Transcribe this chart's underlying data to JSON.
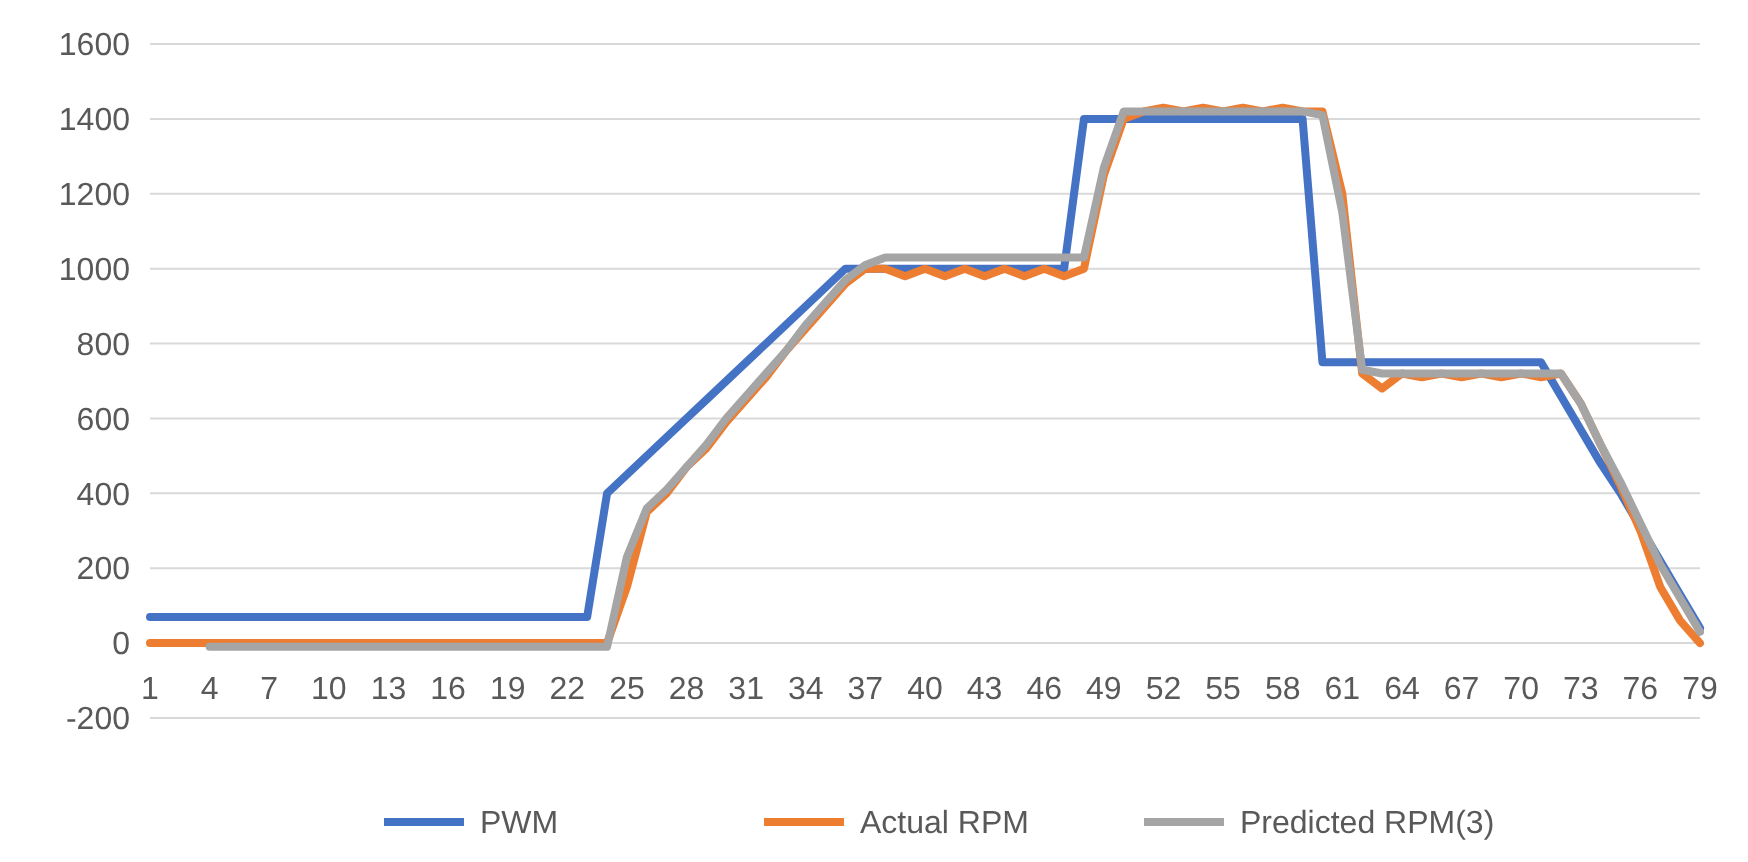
{
  "chart_data": {
    "type": "line",
    "categories": [
      "1",
      null,
      null,
      "4",
      null,
      null,
      "7",
      null,
      null,
      "10",
      null,
      null,
      "13",
      null,
      null,
      "16",
      null,
      null,
      "19",
      null,
      null,
      "22",
      null,
      null,
      "25",
      null,
      null,
      "28",
      null,
      null,
      "31",
      null,
      null,
      "34",
      null,
      null,
      "37",
      null,
      null,
      "40",
      null,
      null,
      "43",
      null,
      null,
      "46",
      null,
      null,
      "49",
      null,
      null,
      "52",
      null,
      null,
      "55",
      null,
      null,
      "58",
      null,
      null,
      "61",
      null,
      null,
      "64",
      null,
      null,
      "67",
      null,
      null,
      "70",
      null,
      null,
      "73",
      null,
      null,
      "76",
      null,
      null,
      "79"
    ],
    "ylim": [
      -200,
      1600
    ],
    "yticks": [
      -200,
      0,
      200,
      400,
      600,
      800,
      1000,
      1200,
      1400,
      1600
    ],
    "grid": "y",
    "legend": "bottom",
    "line_style": "solid",
    "marker": "none",
    "series": [
      {
        "name": "PWM",
        "color": "#4472c4",
        "values": [
          70,
          70,
          70,
          70,
          70,
          70,
          70,
          70,
          70,
          70,
          70,
          70,
          70,
          70,
          70,
          70,
          70,
          70,
          70,
          70,
          70,
          70,
          70,
          400,
          450,
          500,
          550,
          600,
          650,
          700,
          750,
          800,
          850,
          900,
          950,
          1000,
          1000,
          1000,
          1000,
          1000,
          1000,
          1000,
          1000,
          1000,
          1000,
          1000,
          1000,
          1400,
          1400,
          1400,
          1400,
          1400,
          1400,
          1400,
          1400,
          1400,
          1400,
          1400,
          1400,
          750,
          750,
          750,
          750,
          750,
          750,
          750,
          750,
          750,
          750,
          750,
          750,
          660,
          570,
          480,
          400,
          310,
          220,
          130,
          40
        ]
      },
      {
        "name": "Actual RPM",
        "color": "#ed7d31",
        "values": [
          0,
          0,
          0,
          0,
          0,
          0,
          0,
          0,
          0,
          0,
          0,
          0,
          0,
          0,
          0,
          0,
          0,
          0,
          0,
          0,
          0,
          0,
          0,
          0,
          150,
          350,
          400,
          470,
          520,
          590,
          650,
          710,
          780,
          840,
          900,
          960,
          1000,
          1000,
          980,
          1000,
          980,
          1000,
          980,
          1000,
          980,
          1000,
          980,
          1000,
          1250,
          1400,
          1420,
          1430,
          1420,
          1430,
          1420,
          1430,
          1420,
          1430,
          1420,
          1420,
          1200,
          720,
          680,
          720,
          710,
          720,
          710,
          720,
          710,
          720,
          710,
          720,
          640,
          530,
          420,
          300,
          150,
          60,
          0
        ]
      },
      {
        "name": "Predicted RPM(3)",
        "color": "#a5a5a5",
        "values": [
          null,
          null,
          null,
          -10,
          -10,
          -10,
          -10,
          -10,
          -10,
          -10,
          -10,
          -10,
          -10,
          -10,
          -10,
          -10,
          -10,
          -10,
          -10,
          -10,
          -10,
          -10,
          -10,
          -10,
          230,
          360,
          410,
          470,
          530,
          600,
          660,
          720,
          780,
          850,
          910,
          970,
          1010,
          1030,
          1030,
          1030,
          1030,
          1030,
          1030,
          1030,
          1030,
          1030,
          1030,
          1030,
          1270,
          1420,
          1420,
          1420,
          1420,
          1420,
          1420,
          1420,
          1420,
          1420,
          1420,
          1410,
          1150,
          730,
          720,
          720,
          720,
          720,
          720,
          720,
          720,
          720,
          720,
          720,
          640,
          530,
          430,
          320,
          210,
          120,
          30
        ]
      }
    ]
  }
}
